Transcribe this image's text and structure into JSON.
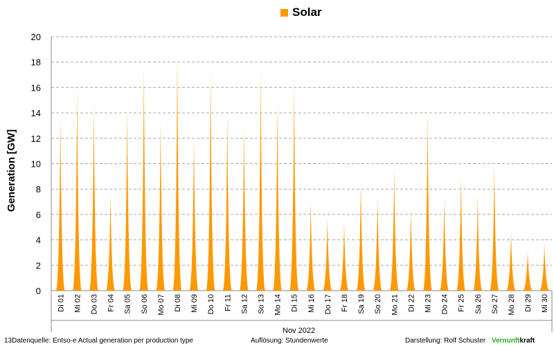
{
  "chart_data": {
    "type": "area",
    "legend": [
      "Solar"
    ],
    "legend_placement": "top-center",
    "ylabel": "Generation  [GW]",
    "xlabel": "Nov 2022",
    "ylim": [
      0,
      20
    ],
    "yticks": [
      0,
      2,
      4,
      6,
      8,
      10,
      12,
      14,
      16,
      18,
      20
    ],
    "grid": true,
    "colors": {
      "solar": "#ff9900",
      "grid": "#a6a6a6"
    },
    "categories": [
      "Di 01",
      "Mi 02",
      "Do 03",
      "Fr 04",
      "Sa 05",
      "So 06",
      "Mo 07",
      "Di 08",
      "Mi 09",
      "Do 10",
      "Fr 11",
      "Sa 12",
      "So 13",
      "Mo 14",
      "Di 15",
      "Mi 16",
      "Do 17",
      "Fr 18",
      "Sa 19",
      "So 20",
      "Mo 21",
      "Di 22",
      "Mi 23",
      "Do 24",
      "Fr 25",
      "Sa 26",
      "So 27",
      "Mo 28",
      "Di 29",
      "Mi 30"
    ],
    "series": [
      {
        "name": "Solar",
        "values": [
          13.8,
          16.1,
          14.7,
          7.7,
          14.4,
          17.5,
          13.4,
          18.5,
          12.2,
          17.2,
          13.9,
          13.0,
          17.3,
          14.9,
          16.3,
          7.0,
          5.8,
          5.4,
          8.6,
          7.4,
          9.6,
          6.4,
          14.1,
          7.3,
          9.1,
          7.5,
          9.9,
          4.6,
          3.1,
          3.7
        ]
      }
    ]
  },
  "footer": {
    "source": "13Datenquelle: Entso-e  Actual generation per production type",
    "resolution": "Auflösung: Stundenwerte",
    "credit": "Darstellung:  Rolf Schuster",
    "brand_green": "Vernunft",
    "brand_rest": "kraft"
  }
}
